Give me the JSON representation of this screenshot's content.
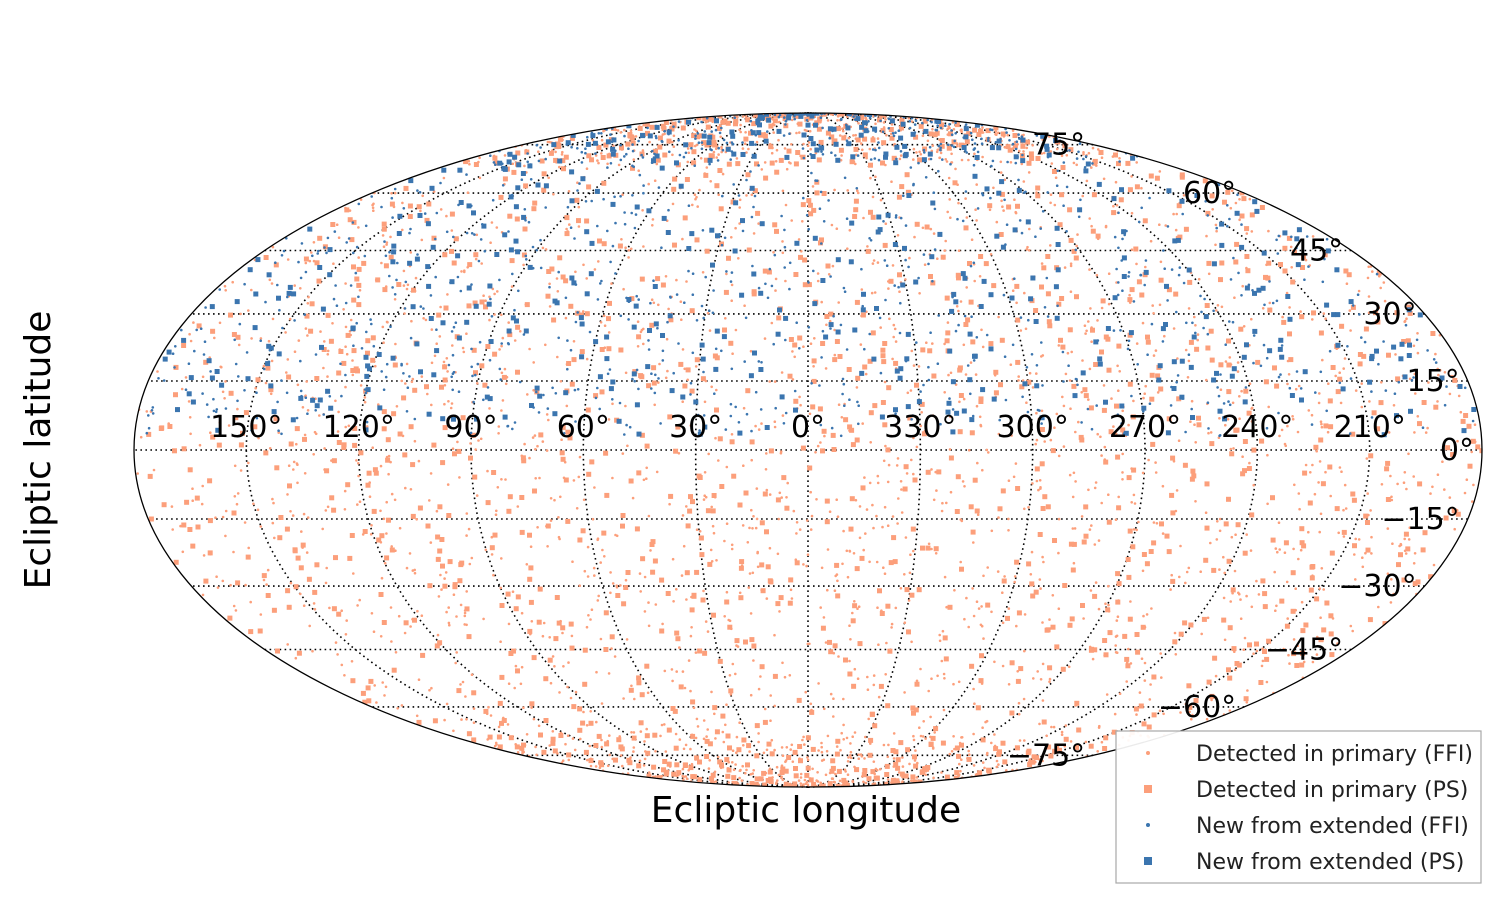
{
  "chart_data": {
    "type": "scatter",
    "projection": "mollweide",
    "xlabel": "Ecliptic longitude",
    "ylabel": "Ecliptic latitude",
    "lon_tick_labels": [
      "150°",
      "120°",
      "90°",
      "60°",
      "30°",
      "0°",
      "330°",
      "300°",
      "270°",
      "240°",
      "210°"
    ],
    "lon_tick_values": [
      150,
      120,
      90,
      60,
      30,
      0,
      330,
      300,
      270,
      240,
      210
    ],
    "lat_tick_labels": [
      "75°",
      "60°",
      "45°",
      "30°",
      "15°",
      "0°",
      "−15°",
      "−30°",
      "−45°",
      "−60°",
      "−75°"
    ],
    "lat_tick_values": [
      75,
      60,
      45,
      30,
      15,
      0,
      -15,
      -30,
      -45,
      -60,
      -75
    ],
    "xlim": [
      -180,
      180
    ],
    "ylim": [
      -90,
      90
    ],
    "grid": true,
    "legend_position": "bottom-right",
    "series": [
      {
        "name": "Detected in primary (FFI)",
        "color": "#fc9f7b",
        "marker": "small-dot",
        "latitude_band": [
          -90,
          90
        ],
        "approx_count": 2600
      },
      {
        "name": "Detected in primary (PS)",
        "color": "#fc9f7b",
        "marker": "square",
        "latitude_band": [
          -90,
          90
        ],
        "approx_count": 1500
      },
      {
        "name": "New from extended (FFI)",
        "color": "#3b75af",
        "marker": "small-dot",
        "latitude_band": [
          3,
          90
        ],
        "approx_count": 1000
      },
      {
        "name": "New from extended (PS)",
        "color": "#3b75af",
        "marker": "square",
        "latitude_band": [
          3,
          90
        ],
        "approx_count": 500
      }
    ]
  }
}
